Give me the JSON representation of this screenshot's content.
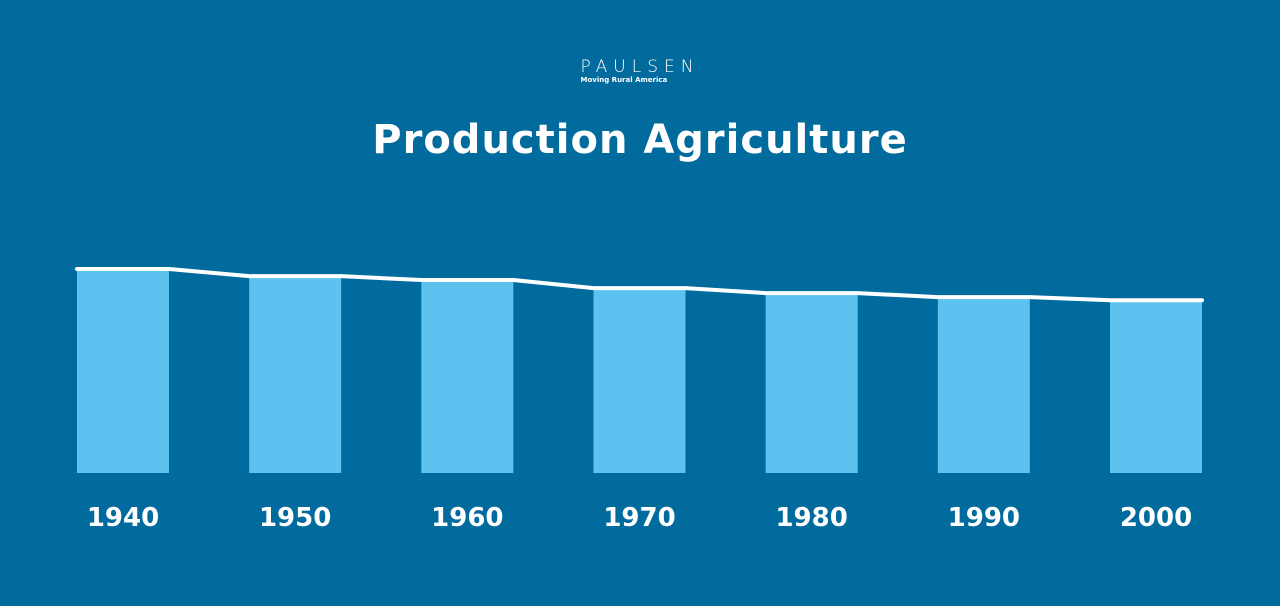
{
  "brand": {
    "name": "PAULSEN",
    "tagline": "Moving Rural America"
  },
  "colors": {
    "background": "#026b9e",
    "bar": "#5dc2ef",
    "line": "#ffffff",
    "text": "#ffffff"
  },
  "chart_data": {
    "type": "bar",
    "title": "Production Agriculture",
    "xlabel": "",
    "ylabel": "",
    "categories": [
      "1940",
      "1950",
      "1960",
      "1970",
      "1980",
      "1990",
      "2000"
    ],
    "series": [
      {
        "values": [
          100,
          96.5,
          94.6,
          90.6,
          88.2,
          86.2,
          84.7
        ]
      }
    ],
    "overlay": "line connecting bar tops",
    "ylim": [
      0,
      100
    ],
    "grid": false,
    "legend": "none"
  }
}
